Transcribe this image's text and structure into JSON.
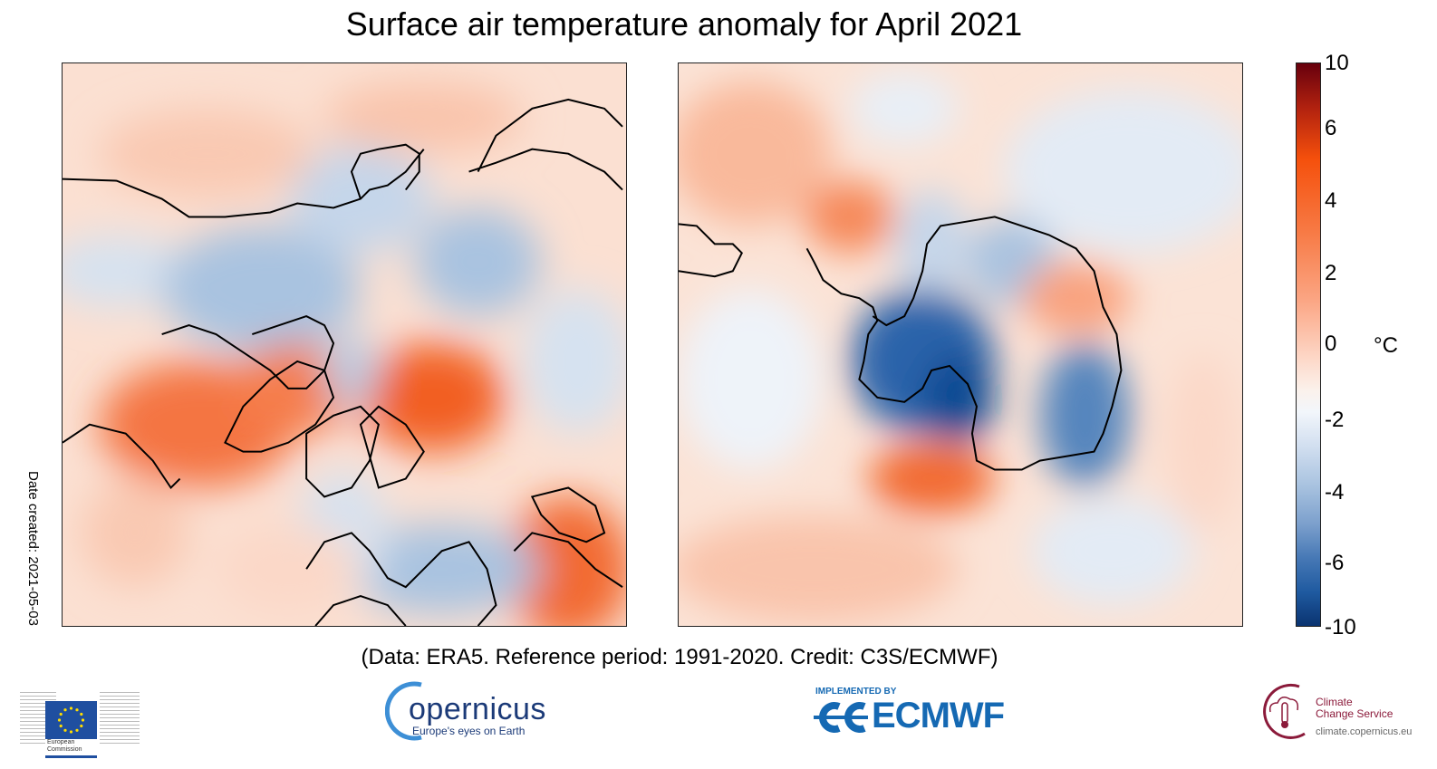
{
  "chart_data": {
    "type": "heatmap",
    "title": "Surface air temperature anomaly for April 2021",
    "subtitle": "(Data: ERA5.  Reference period: 1991-2020.  Credit: C3S/ECMWF)",
    "panels": [
      "Northern hemisphere polar view",
      "Southern hemisphere polar view"
    ],
    "colorbar": {
      "label": "°C",
      "ticks": [
        "10",
        "6",
        "4",
        "2",
        "0",
        "-2",
        "-4",
        "-6",
        "-10"
      ],
      "range": [
        -10,
        10
      ],
      "colors": {
        "max": "#67000d",
        "warm": "#f5500c",
        "zero": "#f7f7f7",
        "cool": "#7b9fcc",
        "min": "#0a3370"
      }
    }
  },
  "side_note": "Date created: 2021-05-03",
  "logos": {
    "ec": {
      "line1": "European",
      "line2": "Commission"
    },
    "copernicus": {
      "name": "opernicus",
      "tagline": "Europe's eyes on Earth"
    },
    "ecmwf": {
      "implemented_by": "IMPLEMENTED BY",
      "name": "ECMWF"
    },
    "c3s": {
      "line1": "Climate",
      "line2": "Change Service",
      "url": "climate.copernicus.eu"
    }
  }
}
